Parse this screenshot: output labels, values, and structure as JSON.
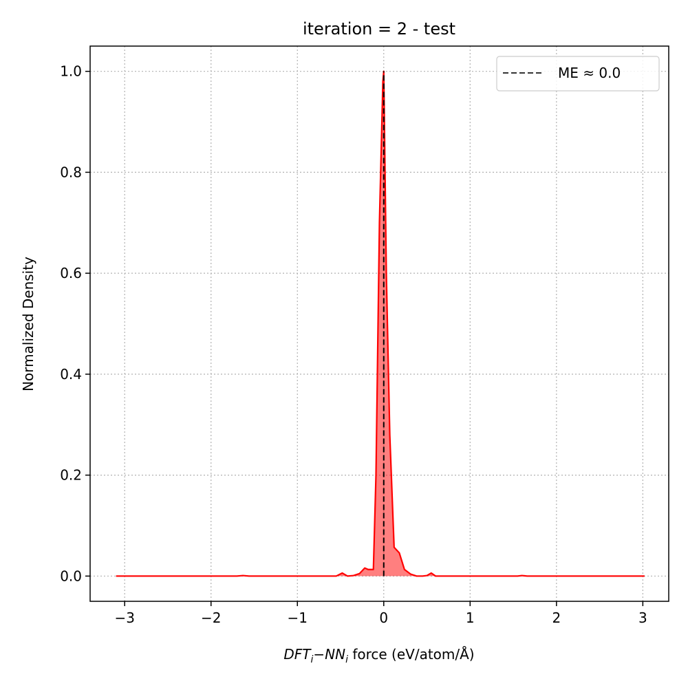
{
  "chart_data": {
    "type": "area",
    "title": "iteration = 2 - test",
    "xlabel": {
      "dft": "DFT",
      "nn": "NN",
      "sub": "i",
      "minus": "−",
      "rest": " force (eV/atom/Å)"
    },
    "ylabel": "Normalized Density",
    "xlim": [
      -3.4,
      3.3
    ],
    "ylim": [
      -0.05,
      1.05
    ],
    "xticks": [
      -3,
      -2,
      -1,
      0,
      1,
      2,
      3
    ],
    "xtick_labels": [
      "−3",
      "−2",
      "−1",
      "0",
      "1",
      "2",
      "3"
    ],
    "yticks": [
      0.0,
      0.2,
      0.4,
      0.6,
      0.8,
      1.0
    ],
    "ytick_labels": [
      "0.0",
      "0.2",
      "0.4",
      "0.6",
      "0.8",
      "1.0"
    ],
    "grid": true,
    "legend_position": "top-right",
    "series": [
      {
        "color": "#ff0000",
        "fill_color": "#ff0000",
        "fill_opacity": 0.5,
        "x": [
          -3.1,
          -1.7,
          -1.63,
          -1.56,
          -0.55,
          -0.48,
          -0.42,
          -0.35,
          -0.28,
          -0.22,
          -0.18,
          -0.12,
          -0.09,
          -0.05,
          -0.01,
          0.0,
          0.03,
          0.07,
          0.12,
          0.18,
          0.24,
          0.31,
          0.38,
          0.45,
          0.5,
          0.55,
          0.6,
          1.55,
          1.6,
          1.66,
          3.02
        ],
        "y": [
          0.0,
          0.0,
          0.001,
          0.0,
          0.0,
          0.006,
          0.0,
          0.001,
          0.005,
          0.016,
          0.013,
          0.013,
          0.2,
          0.7,
          0.98,
          1.0,
          0.6,
          0.28,
          0.057,
          0.046,
          0.013,
          0.004,
          0.0,
          0.0,
          0.001,
          0.006,
          0.0,
          0.0,
          0.001,
          0.0,
          0.0
        ]
      }
    ],
    "vline": {
      "x": 0.0,
      "style": "dashed",
      "color": "#000000",
      "label": "ME  ≈  0.0"
    }
  }
}
